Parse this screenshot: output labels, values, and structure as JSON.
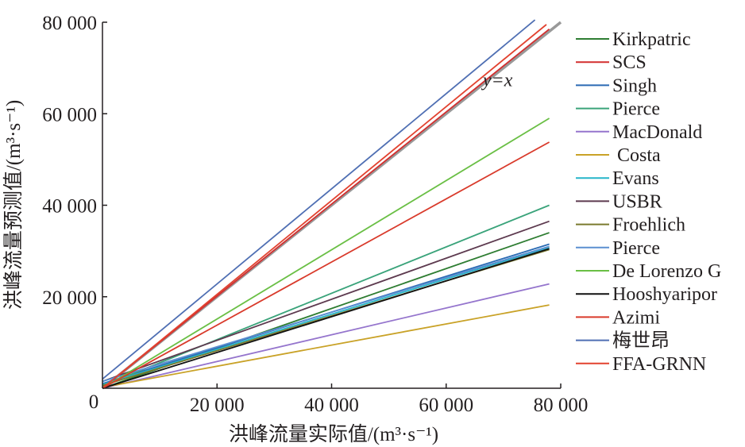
{
  "chart_data": {
    "type": "line",
    "title": "",
    "xlabel": "洪峰流量实际值/(m³·s⁻¹)",
    "ylabel": "洪峰流量预测值/(m³·s⁻¹)",
    "xlim": [
      0,
      80000
    ],
    "ylim": [
      0,
      80000
    ],
    "x_ticks": [
      {
        "value": 20000,
        "label": "20 000"
      },
      {
        "value": 40000,
        "label": "40 000"
      },
      {
        "value": 60000,
        "label": "60 000"
      },
      {
        "value": 80000,
        "label": "80 000"
      }
    ],
    "y_ticks": [
      {
        "value": 20000,
        "label": "20 000"
      },
      {
        "value": 40000,
        "label": "40 000"
      },
      {
        "value": 60000,
        "label": "60 000"
      },
      {
        "value": 80000,
        "label": "80 000"
      }
    ],
    "origin_label": "0",
    "grid": false,
    "legend_position": "right",
    "annotations": [
      {
        "text": "y=x",
        "x": 69000,
        "y": 66000
      }
    ],
    "reference_line": {
      "x": [
        0,
        80000
      ],
      "y": [
        0,
        80000
      ],
      "color": "#999999"
    },
    "series": [
      {
        "name": "Kirkpatric",
        "color": "#2e7d32",
        "x": [
          0,
          78000
        ],
        "y": [
          0,
          34000
        ]
      },
      {
        "name": "SCS",
        "color": "#d32f2f",
        "x": [
          0,
          78000
        ],
        "y": [
          0,
          78500
        ]
      },
      {
        "name": "Singh",
        "color": "#2a6ab3",
        "x": [
          0,
          78000
        ],
        "y": [
          1000,
          31500
        ]
      },
      {
        "name": "Pierce",
        "color": "#3aa37a",
        "x": [
          0,
          78000
        ],
        "y": [
          500,
          40000
        ]
      },
      {
        "name": "MacDonald",
        "color": "#9575cd",
        "x": [
          0,
          78000
        ],
        "y": [
          0,
          22800
        ]
      },
      {
        "name": " Costa",
        "color": "#c9a227",
        "x": [
          0,
          78000
        ],
        "y": [
          200,
          18200
        ]
      },
      {
        "name": "Evans",
        "color": "#26b5c9",
        "x": [
          0,
          78000
        ],
        "y": [
          800,
          30800
        ]
      },
      {
        "name": "USBR",
        "color": "#5d3a4f",
        "x": [
          0,
          78000
        ],
        "y": [
          1500,
          36500
        ]
      },
      {
        "name": "Froehlich",
        "color": "#7a7a2e",
        "x": [
          0,
          78000
        ],
        "y": [
          600,
          30300
        ]
      },
      {
        "name": "Pierce",
        "color": "#5b8fd0",
        "x": [
          0,
          78000
        ],
        "y": [
          1500,
          31000
        ]
      },
      {
        "name": "De Lorenzo G",
        "color": "#6abf45",
        "x": [
          0,
          78000
        ],
        "y": [
          0,
          59000
        ]
      },
      {
        "name": "Hooshyaripor",
        "color": "#111111",
        "x": [
          0,
          78000
        ],
        "y": [
          0,
          30500
        ]
      },
      {
        "name": "Azimi",
        "color": "#d93a2b",
        "x": [
          0,
          78000
        ],
        "y": [
          0,
          53800
        ]
      },
      {
        "name": "梅世昂",
        "color": "#4f6fb3",
        "x": [
          0,
          75500
        ],
        "y": [
          2000,
          80500
        ]
      },
      {
        "name": "FFA-GRNN",
        "color": "#e2422f",
        "x": [
          0,
          77500
        ],
        "y": [
          0,
          79500
        ]
      }
    ]
  }
}
